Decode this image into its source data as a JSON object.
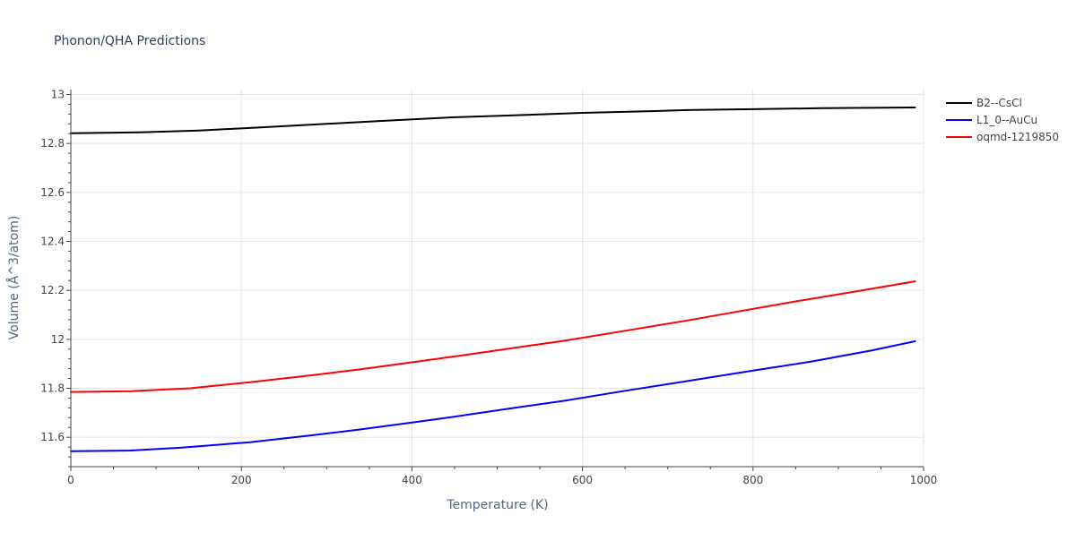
{
  "chart_data": {
    "type": "line",
    "title": "Phonon/QHA Predictions",
    "xlabel": "Temperature (K)",
    "ylabel": "Volume (Å^3/atom)",
    "xlim": [
      0,
      1000
    ],
    "ylim": [
      11.48,
      13.02
    ],
    "x_ticks": [
      0,
      200,
      400,
      600,
      800,
      1000
    ],
    "x_tick_labels": [
      "0",
      "200",
      "400",
      "600",
      "800",
      "1000"
    ],
    "x_minor_step": 50,
    "y_ticks": [
      11.6,
      11.8,
      12.0,
      12.2,
      12.4,
      12.6,
      12.8,
      13.0
    ],
    "y_tick_labels": [
      "11.6",
      "11.8",
      "12",
      "12.2",
      "12.4",
      "12.6",
      "12.8",
      "13"
    ],
    "y_minor_step": 0.04,
    "grid": true,
    "legend_position": "top-right",
    "series": [
      {
        "name": "B2--CsCl",
        "color": "#000000",
        "x": [
          0,
          80,
          150,
          220,
          300,
          380,
          450,
          520,
          600,
          680,
          730,
          800,
          880,
          990
        ],
        "y": [
          12.842,
          12.845,
          12.853,
          12.865,
          12.88,
          12.895,
          12.907,
          12.915,
          12.925,
          12.932,
          12.937,
          12.94,
          12.944,
          12.947
        ]
      },
      {
        "name": "L1_0--AuCu",
        "color": "#0000ff",
        "x": [
          0,
          70,
          130,
          210,
          280,
          340,
          400,
          450,
          520,
          580,
          650,
          720,
          800,
          870,
          940,
          990
        ],
        "y": [
          11.543,
          11.546,
          11.558,
          11.58,
          11.607,
          11.632,
          11.66,
          11.684,
          11.72,
          11.75,
          11.79,
          11.828,
          11.872,
          11.91,
          11.955,
          11.992
        ]
      },
      {
        "name": "oqmd-1219850",
        "color": "#ff0000",
        "x": [
          0,
          70,
          140,
          210,
          280,
          340,
          400,
          460,
          520,
          580,
          650,
          720,
          780,
          850,
          920,
          990
        ],
        "y": [
          11.785,
          11.788,
          11.8,
          11.825,
          11.852,
          11.878,
          11.906,
          11.935,
          11.965,
          11.995,
          12.035,
          12.075,
          12.112,
          12.155,
          12.195,
          12.237
        ]
      }
    ]
  }
}
